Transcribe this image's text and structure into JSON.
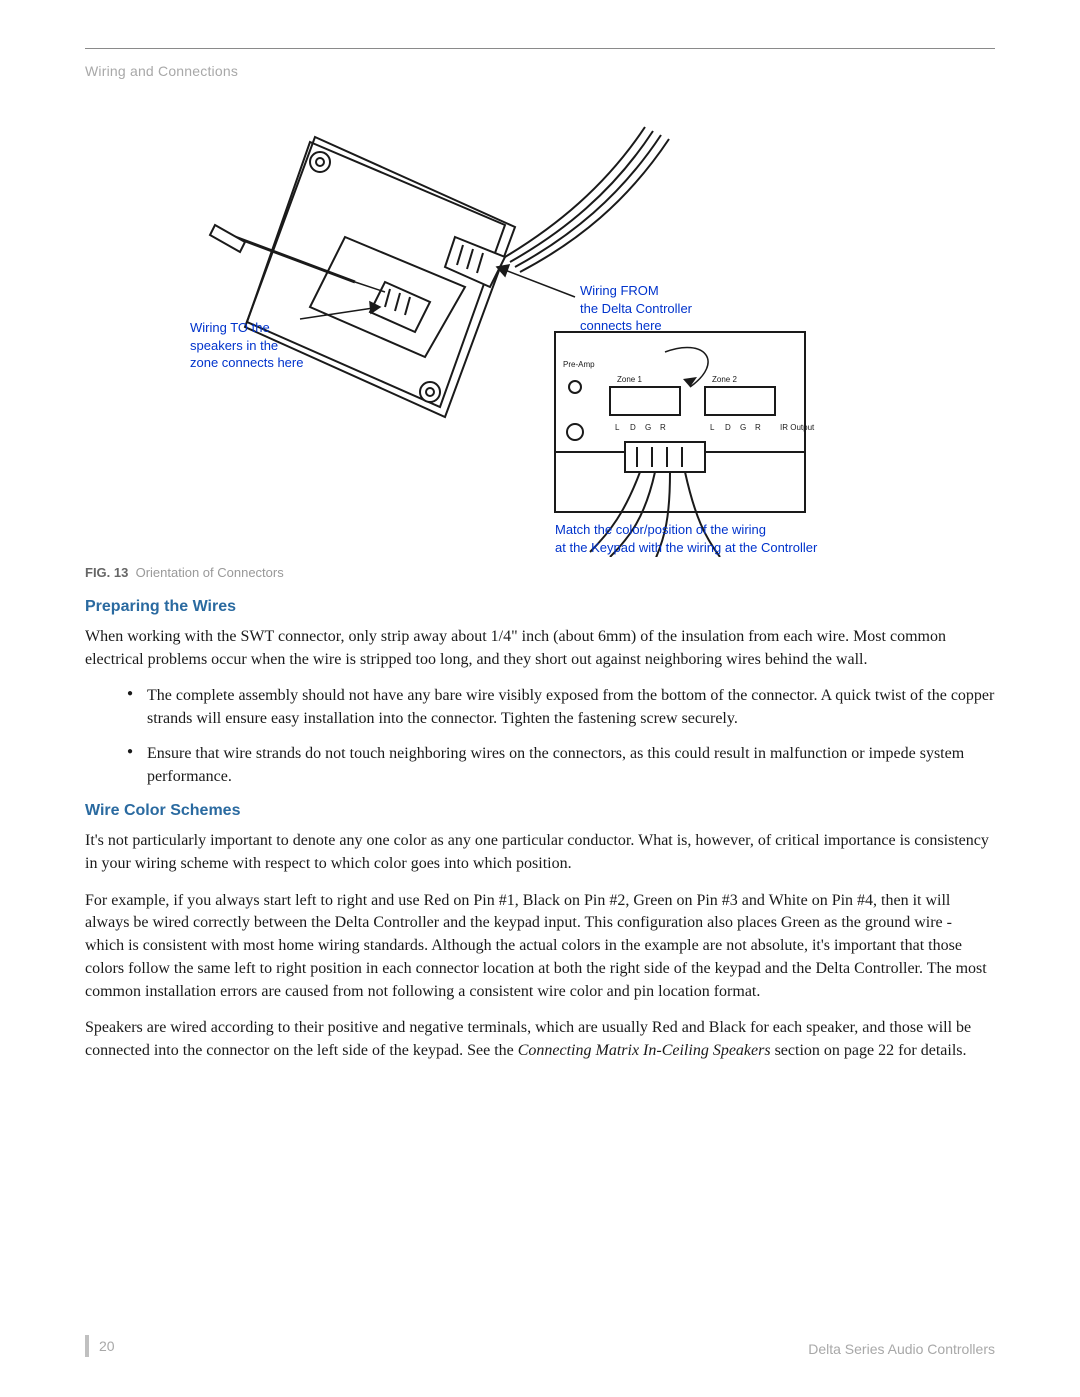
{
  "colors": {
    "callout_blue": "#0033cc",
    "subhead_blue": "#2a6aa0",
    "muted_gray": "#a8a8a8",
    "caption_gray": "#999999",
    "line_art": "#1a1a1a",
    "rule": "#8a8a8a"
  },
  "header": {
    "section": "Wiring and Connections"
  },
  "figure": {
    "callout_left": "Wiring TO the\nspeakers in the\nzone connects here",
    "callout_right": "Wiring FROM\nthe Delta Controller\nconnects here",
    "callout_bottom": "Match the color/position of the wiring\nat the Keypad with the wiring at the Controller",
    "caption_num": "FIG. 13",
    "caption_text": "Orientation of Connectors"
  },
  "sections": {
    "preparing": {
      "title": "Preparing the Wires",
      "p1": "When working with the SWT connector, only strip away about 1/4\" inch (about 6mm) of the insulation from each wire. Most common electrical problems occur when the wire is stripped too long, and they short out against neighboring wires behind the wall.",
      "bullets": [
        "The complete assembly should not have any bare wire visibly exposed from the bottom of the connector. A quick twist of the copper strands will ensure easy installation into the connector. Tighten the fastening screw securely.",
        "Ensure that wire strands do not touch neighboring wires on the connectors, as this could result in malfunction or impede system performance."
      ]
    },
    "colorschemes": {
      "title": "Wire Color Schemes",
      "p1": "It's not particularly important to denote any one color as any one particular conductor. What is, however, of critical importance is consistency in your wiring scheme with respect to which color goes into which position.",
      "p2": "For example, if you always start left to right and use Red on Pin #1, Black on Pin #2, Green on Pin #3 and White on Pin #4, then it will always be wired correctly between the Delta Controller and the keypad input. This configuration also places Green as the ground wire - which is consistent with most home wiring standards. Although the actual colors in the example are not absolute, it's important that those colors follow the same left to right position in each connector location at both the right side of the keypad and the Delta Controller. The most common installation errors are caused from not following a consistent wire color and pin location format.",
      "p3_pre": "Speakers are wired according to their positive and negative terminals, which are usually Red and Black for each speaker, and those will be connected into the connector on the left side of the keypad. See the ",
      "p3_italic": "Connecting Matrix In-Ceiling Speakers",
      "p3_post": " section on page 22 for details."
    }
  },
  "footer": {
    "page": "20",
    "doc": "Delta Series Audio Controllers"
  }
}
